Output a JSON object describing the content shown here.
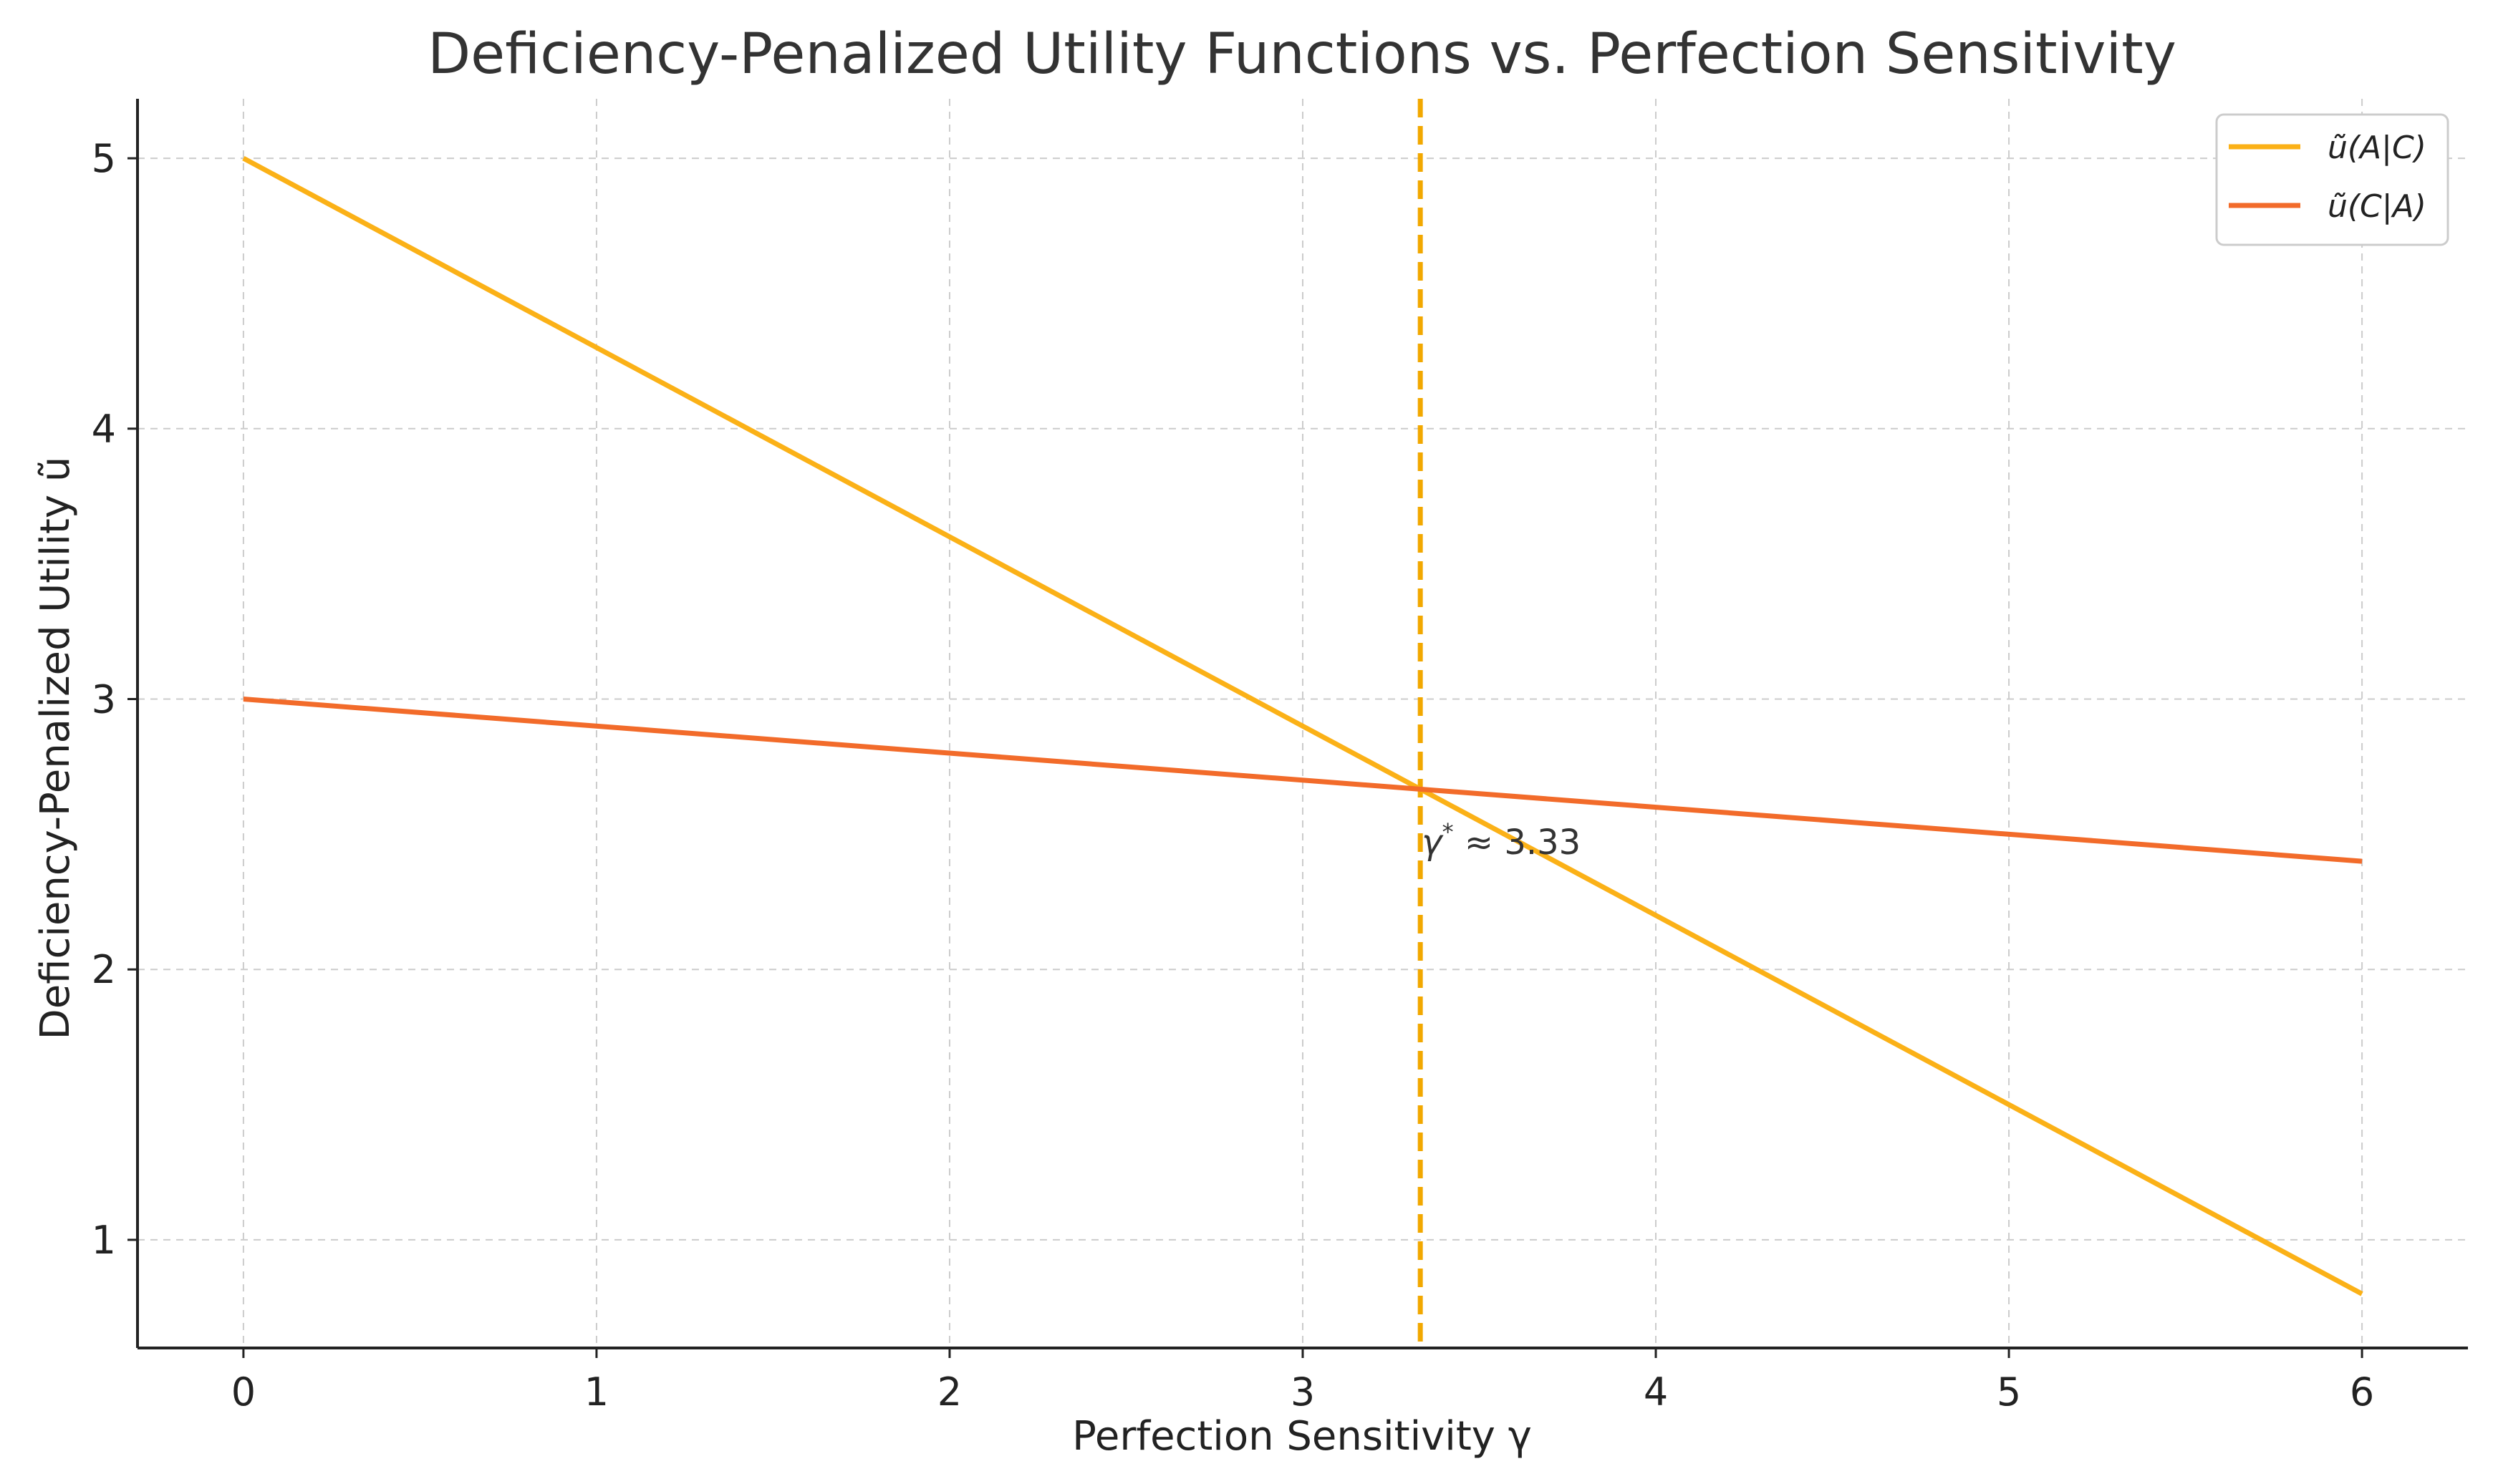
{
  "chart_data": {
    "type": "line",
    "title": "Deficiency-Penalized Utility Functions vs. Perfection Sensitivity",
    "xlabel": "Perfection Sensitivity γ",
    "ylabel": "Deficiency-Penalized Utility ũ",
    "xlim": [
      -0.3,
      6.3
    ],
    "ylim": [
      0.6,
      5.22
    ],
    "xticks": [
      0,
      1,
      2,
      3,
      4,
      5,
      6
    ],
    "yticks": [
      1,
      2,
      3,
      4,
      5
    ],
    "grid": true,
    "legend_position": "top-right",
    "series": [
      {
        "name": "ũ(A|C)",
        "color": "#FBB117",
        "x": [
          0,
          6
        ],
        "y": [
          5.0,
          0.8
        ]
      },
      {
        "name": "ũ(C|A)",
        "color": "#F26B2A",
        "x": [
          0,
          6
        ],
        "y": [
          3.0,
          2.4
        ]
      }
    ],
    "vline": {
      "x": 3.333,
      "color": "#F2A800",
      "style": "dashed"
    },
    "annotation": {
      "symbol": "γ",
      "sup": "*",
      "text": " ≈ 3.33",
      "x": 3.333,
      "y": 2.48
    }
  }
}
